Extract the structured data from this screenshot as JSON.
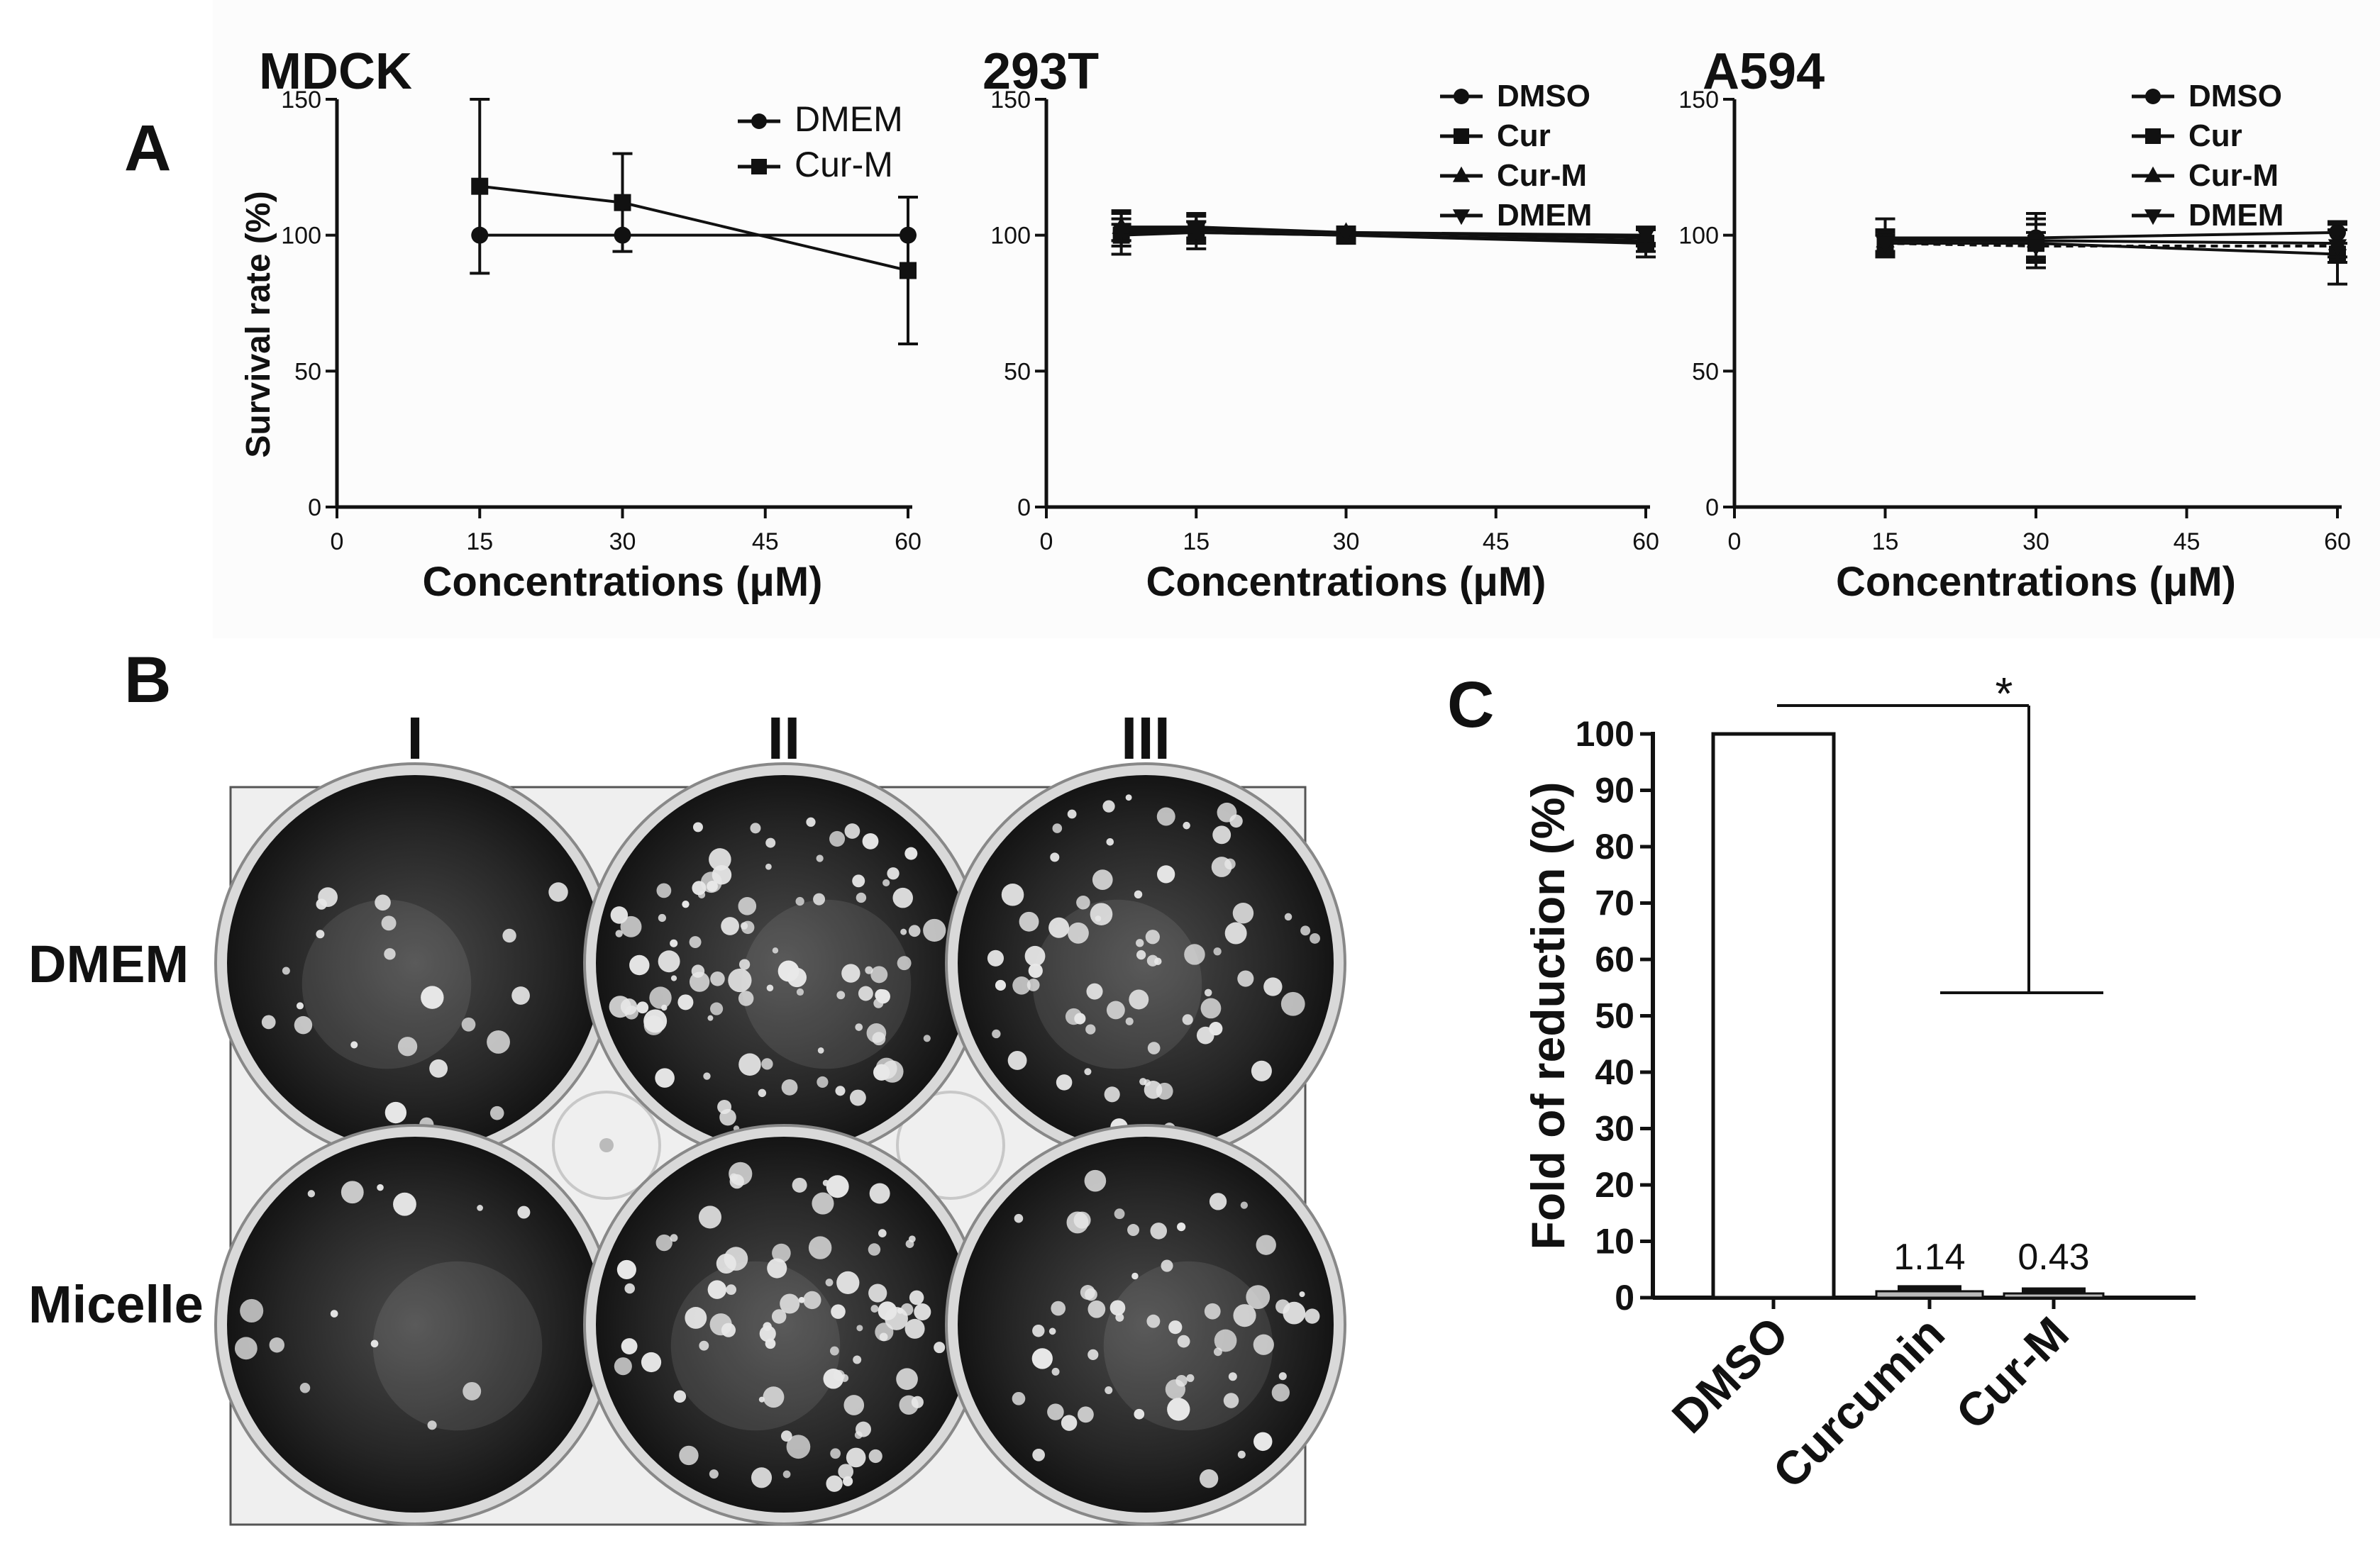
{
  "figure": {
    "panel_labels": {
      "a": "A",
      "b": "B",
      "c": "C"
    },
    "plate": {
      "columns": [
        "I",
        "II",
        "III"
      ],
      "rows": [
        "DMEM",
        "Micelle"
      ]
    }
  },
  "chart_data": [
    {
      "id": "mdck",
      "type": "line",
      "title": "MDCK",
      "xlabel": "Concentrations (μM)",
      "ylabel": "Survival rate (%)",
      "xlim": [
        0,
        60
      ],
      "ylim": [
        0,
        150
      ],
      "xticks": [
        0,
        15,
        30,
        45,
        60
      ],
      "yticks": [
        0,
        50,
        100,
        150
      ],
      "legend_position": "top-right",
      "series": [
        {
          "name": "DMEM",
          "marker": "circle",
          "x": [
            15,
            30,
            60
          ],
          "y": [
            100,
            100,
            100
          ],
          "err": [
            0,
            0,
            0
          ]
        },
        {
          "name": "Cur-M",
          "marker": "square",
          "x": [
            15,
            30,
            60
          ],
          "y": [
            118,
            112,
            87
          ],
          "err": [
            32,
            18,
            27
          ]
        }
      ]
    },
    {
      "id": "t293",
      "type": "line",
      "title": "293T",
      "xlabel": "Concentrations (μM)",
      "ylabel": "",
      "xlim": [
        0,
        60
      ],
      "ylim": [
        0,
        150
      ],
      "xticks": [
        0,
        15,
        30,
        45,
        60
      ],
      "yticks": [
        0,
        50,
        100,
        150
      ],
      "legend_position": "top-right",
      "series": [
        {
          "name": "DMSO",
          "marker": "circle",
          "x": [
            7.5,
            15,
            30,
            60
          ],
          "y": [
            101,
            101,
            100,
            98
          ],
          "err": [
            8,
            6,
            3,
            4
          ]
        },
        {
          "name": "Cur",
          "marker": "square",
          "x": [
            7.5,
            15,
            30,
            60
          ],
          "y": [
            100,
            101,
            100,
            97
          ],
          "err": [
            4,
            4,
            2,
            5
          ]
        },
        {
          "name": "Cur-M",
          "marker": "triangle-up",
          "x": [
            7.5,
            15,
            30,
            60
          ],
          "y": [
            103,
            103,
            101,
            99
          ],
          "err": [
            5,
            5,
            2,
            3
          ]
        },
        {
          "name": "DMEM",
          "marker": "triangle-down",
          "x": [
            7.5,
            15,
            30,
            60
          ],
          "y": [
            102,
            102,
            101,
            100
          ],
          "err": [
            4,
            3,
            2,
            3
          ]
        }
      ]
    },
    {
      "id": "a594",
      "type": "line",
      "title": "A594",
      "xlabel": "Concentrations (μM)",
      "ylabel": "",
      "xlim": [
        0,
        60
      ],
      "ylim": [
        0,
        150
      ],
      "xticks": [
        0,
        15,
        30,
        45,
        60
      ],
      "yticks": [
        0,
        50,
        100,
        150
      ],
      "legend_position": "top-right",
      "series": [
        {
          "name": "DMSO",
          "marker": "circle",
          "x": [
            15,
            30,
            60
          ],
          "y": [
            99,
            99,
            101
          ],
          "err": [
            7,
            9,
            4
          ]
        },
        {
          "name": "Cur",
          "marker": "square",
          "x": [
            15,
            30,
            60
          ],
          "y": [
            97,
            97,
            93
          ],
          "err": [
            3,
            9,
            11
          ]
        },
        {
          "name": "Cur-M",
          "marker": "triangle-up",
          "x": [
            15,
            30,
            60
          ],
          "y": [
            98,
            98,
            97
          ],
          "err": [
            4,
            6,
            5
          ]
        },
        {
          "name": "DMEM",
          "marker": "triangle-down",
          "x": [
            15,
            30,
            60
          ],
          "y": [
            97,
            96,
            96
          ],
          "err": [
            4,
            5,
            6
          ]
        }
      ]
    },
    {
      "id": "fold",
      "type": "bar",
      "title": "",
      "xlabel": "",
      "ylabel": "Fold of reduction (%)",
      "ylim": [
        0,
        100
      ],
      "yticks": [
        0,
        10,
        20,
        30,
        40,
        50,
        60,
        70,
        80,
        90,
        100
      ],
      "categories": [
        "DMSO",
        "Curcumin",
        "Cur-M"
      ],
      "values": [
        100,
        1.14,
        0.43
      ],
      "value_labels": [
        "",
        "1.14",
        "0.43"
      ],
      "significance": {
        "label": "*",
        "from": "DMSO",
        "to": "Cur-M"
      }
    }
  ]
}
